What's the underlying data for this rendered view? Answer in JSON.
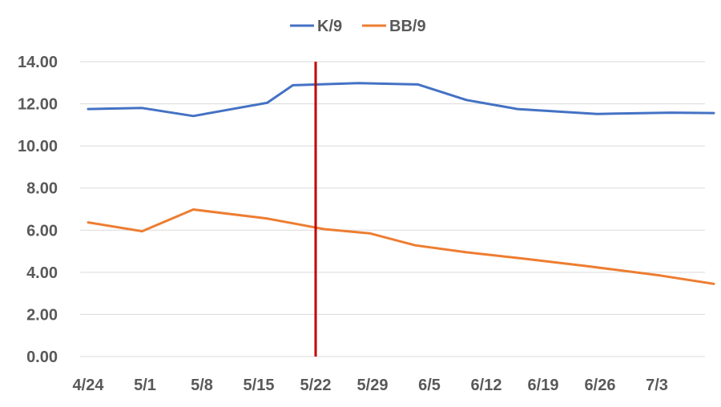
{
  "chart_data": {
    "type": "line",
    "x": [
      "4/24",
      "5/1",
      "5/8",
      "5/15",
      "5/22",
      "5/29",
      "6/5",
      "6/12",
      "6/19",
      "6/26",
      "7/3"
    ],
    "ylim": [
      0,
      14
    ],
    "yticks": [
      "0.00",
      "2.00",
      "4.00",
      "6.00",
      "8.00",
      "10.00",
      "12.00",
      "14.00"
    ],
    "grid": true,
    "legend_position": "top",
    "series": [
      {
        "name": "K/9",
        "color": "#4472C4",
        "points": [
          {
            "x": 0.0,
            "y": 11.75
          },
          {
            "x": 0.95,
            "y": 11.8
          },
          {
            "x": 1.85,
            "y": 11.42
          },
          {
            "x": 3.15,
            "y": 12.05
          },
          {
            "x": 3.6,
            "y": 12.88
          },
          {
            "x": 4.75,
            "y": 12.98
          },
          {
            "x": 5.8,
            "y": 12.92
          },
          {
            "x": 6.65,
            "y": 12.18
          },
          {
            "x": 7.55,
            "y": 11.75
          },
          {
            "x": 8.95,
            "y": 11.52
          },
          {
            "x": 10.25,
            "y": 11.58
          },
          {
            "x": 11.0,
            "y": 11.56
          }
        ]
      },
      {
        "name": "BB/9",
        "color": "#ED7D31",
        "points": [
          {
            "x": 0.0,
            "y": 6.37
          },
          {
            "x": 0.95,
            "y": 5.95
          },
          {
            "x": 1.85,
            "y": 6.98
          },
          {
            "x": 3.15,
            "y": 6.55
          },
          {
            "x": 4.15,
            "y": 6.05
          },
          {
            "x": 4.95,
            "y": 5.85
          },
          {
            "x": 5.75,
            "y": 5.28
          },
          {
            "x": 6.65,
            "y": 4.95
          },
          {
            "x": 7.65,
            "y": 4.65
          },
          {
            "x": 8.75,
            "y": 4.3
          },
          {
            "x": 10.05,
            "y": 3.85
          },
          {
            "x": 11.0,
            "y": 3.45
          }
        ]
      }
    ],
    "annotations": [
      {
        "type": "vertical-line",
        "x": 4.0,
        "y_from": 0,
        "y_to": 14,
        "color": "#C00000"
      }
    ]
  }
}
